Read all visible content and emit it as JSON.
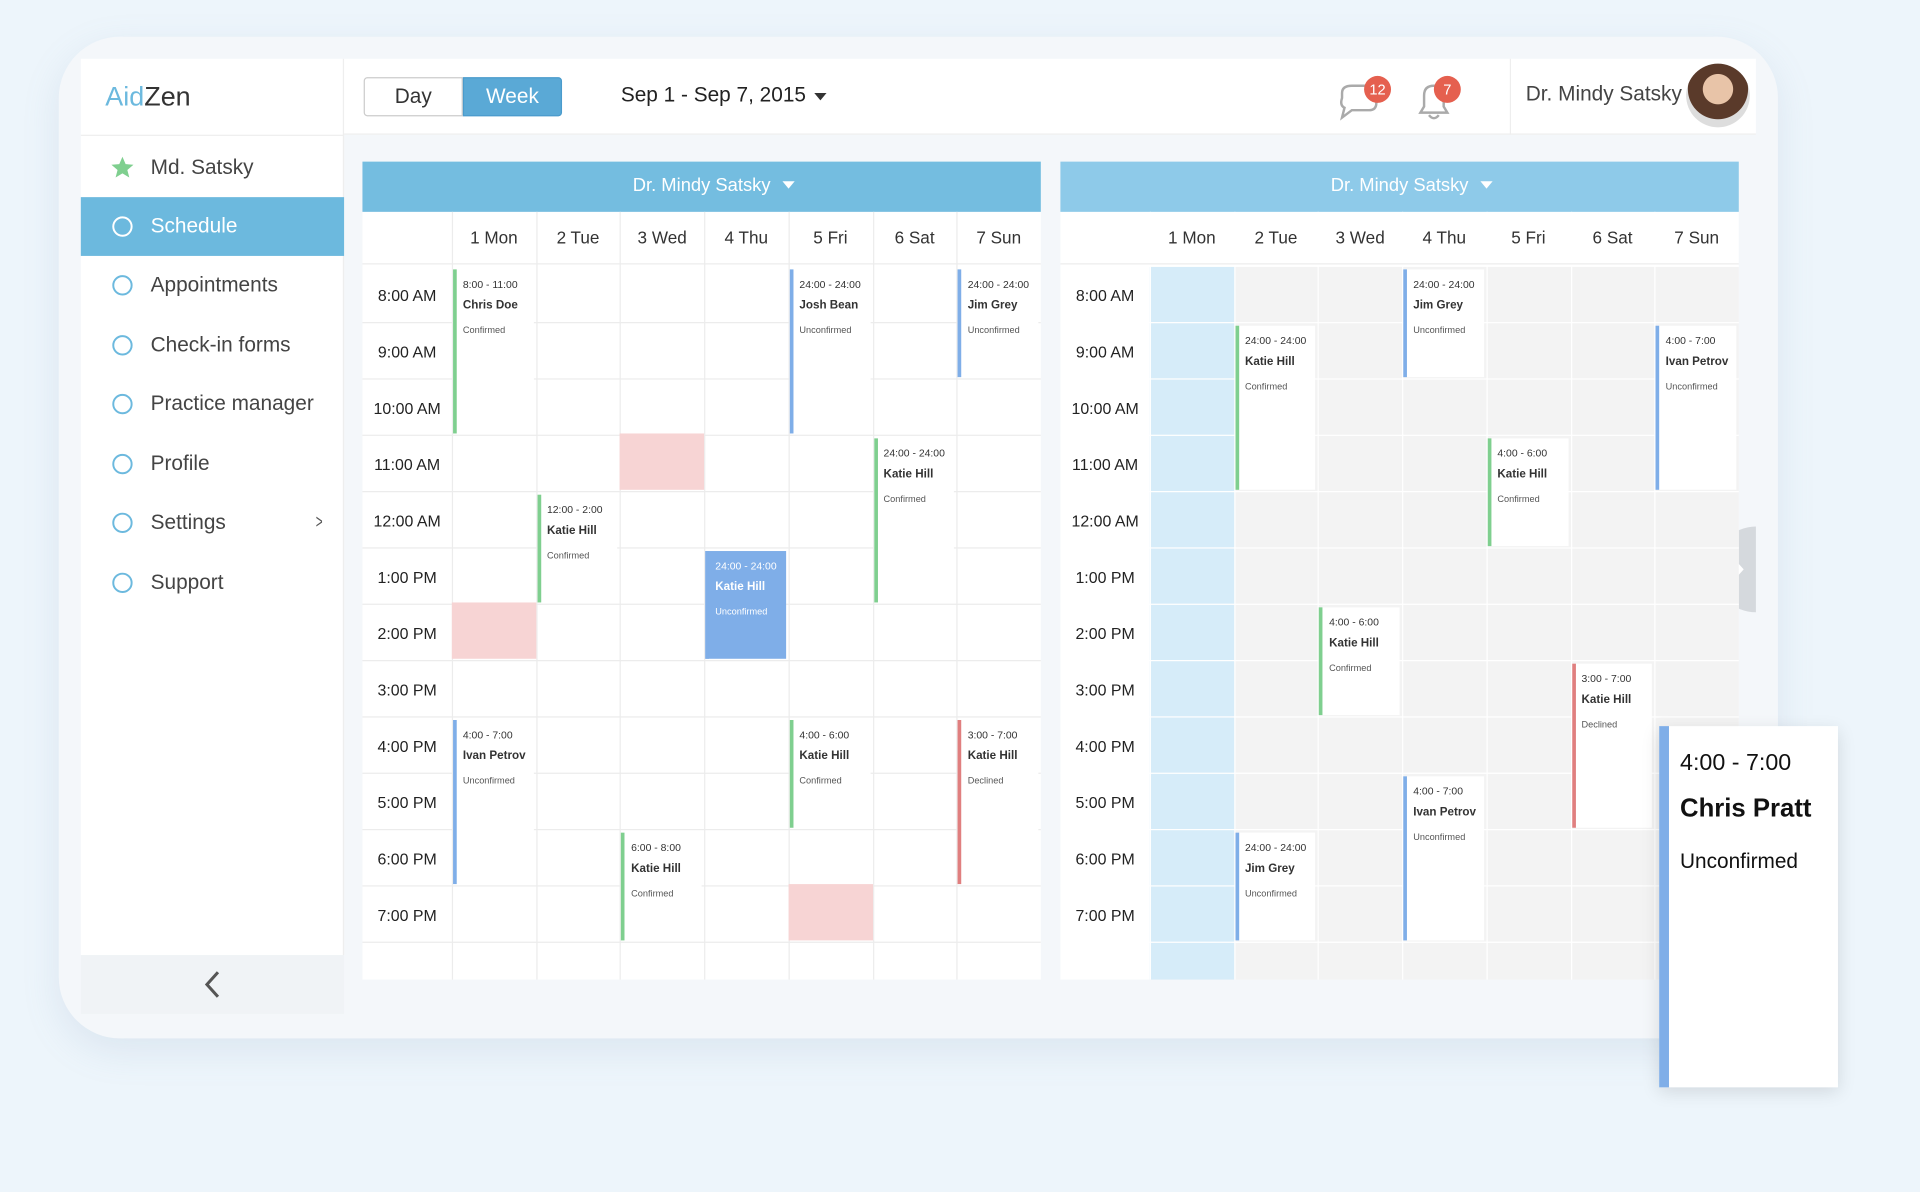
{
  "logo": {
    "accent": "Aid",
    "rest": "Zen"
  },
  "view_tabs": [
    "Day",
    "Week"
  ],
  "date_range": "Sep 1 - Sep 7, 2015",
  "messages_badge": 12,
  "notifications_badge": 7,
  "user_name": "Dr. Mindy Satsky",
  "nav": [
    "Md. Satsky",
    "Schedule",
    "Appointments",
    "Check-in forms",
    "Practice manager",
    "Profile",
    "Settings",
    "Support"
  ],
  "calendars": [
    {
      "doctor": "Dr. Mindy Satsky",
      "days": [
        "1 Mon",
        "2 Tue",
        "3 Wed",
        "4 Thu",
        "5 Fri",
        "6 Sat",
        "7 Sun"
      ],
      "times": [
        "8:00 AM",
        "9:00 AM",
        "10:00 AM",
        "11:00 AM",
        "12:00 AM",
        "1:00 PM",
        "2:00 PM",
        "3:00 PM",
        "4:00 PM",
        "5:00 PM",
        "6:00 PM",
        "7:00 PM"
      ],
      "events": [
        {
          "time": "8:00 - 11:00",
          "name": "Chris Doe",
          "status": "Confirmed"
        },
        {
          "time": "24:00 - 24:00",
          "name": "Josh Bean",
          "status": "Unconfirmed"
        },
        {
          "time": "24:00 - 24:00",
          "name": "Jim Grey",
          "status": "Unconfirmed"
        },
        {
          "time": "24:00 - 24:00",
          "name": "Katie Hill",
          "status": "Confirmed"
        },
        {
          "time": "12:00 - 2:00",
          "name": "Katie Hill",
          "status": "Confirmed"
        },
        {
          "time": "24:00 - 24:00",
          "name": "Katie Hill",
          "status": "Unconfirmed"
        },
        {
          "time": "4:00 - 7:00",
          "name": "Ivan Petrov",
          "status": "Unconfirmed"
        },
        {
          "time": "4:00 - 6:00",
          "name": "Katie Hill",
          "status": "Confirmed"
        },
        {
          "time": "3:00 - 7:00",
          "name": "Katie Hill",
          "status": "Declined"
        },
        {
          "time": "6:00 - 8:00",
          "name": "Katie Hill",
          "status": "Confirmed"
        }
      ]
    },
    {
      "doctor": "Dr. Mindy Satsky",
      "days": [
        "1 Mon",
        "2 Tue",
        "3 Wed",
        "4 Thu",
        "5 Fri",
        "6 Sat",
        "7 Sun"
      ],
      "times": [
        "8:00 AM",
        "9:00 AM",
        "10:00 AM",
        "11:00 AM",
        "12:00 AM",
        "1:00 PM",
        "2:00 PM",
        "3:00 PM",
        "4:00 PM",
        "5:00 PM",
        "6:00 PM",
        "7:00 PM"
      ],
      "events": [
        {
          "time": "24:00 - 24:00",
          "name": "Jim Grey",
          "status": "Unconfirmed"
        },
        {
          "time": "24:00 - 24:00",
          "name": "Katie Hill",
          "status": "Confirmed"
        },
        {
          "time": "4:00 - 7:00",
          "name": "Ivan Petrov",
          "status": "Unconfirmed"
        },
        {
          "time": "4:00 - 6:00",
          "name": "Katie Hill",
          "status": "Confirmed"
        },
        {
          "time": "4:00 - 6:00",
          "name": "Katie Hill",
          "status": "Confirmed"
        },
        {
          "time": "3:00 - 7:00",
          "name": "Katie Hill",
          "status": "Declined"
        },
        {
          "time": "4:00 - 7:00",
          "name": "Ivan Petrov",
          "status": "Unconfirmed"
        },
        {
          "time": "24:00 - 24:00",
          "name": "Jim Grey",
          "status": "Unconfirmed"
        }
      ]
    }
  ],
  "popup": {
    "time": "4:00 - 7:00",
    "name": "Chris Pratt",
    "status": "Unconfirmed"
  }
}
